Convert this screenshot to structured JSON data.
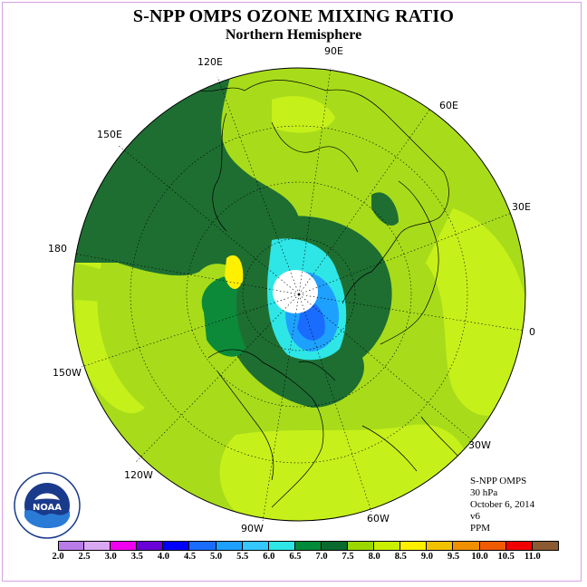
{
  "title": "S-NPP OMPS OZONE MIXING RATIO",
  "subtitle": "Northern Hemisphere",
  "longitude_labels": [
    "90E",
    "60E",
    "30E",
    "0",
    "30W",
    "60W",
    "90W",
    "120W",
    "150W",
    "180",
    "150E",
    "120E"
  ],
  "info": {
    "instrument": "S-NPP OMPS",
    "level": "30 hPa",
    "date": "October 6, 2014",
    "version": "v6",
    "units": "PPM"
  },
  "logo_text": "NOAA",
  "colorbar": {
    "labels": [
      "2.0",
      "2.5",
      "3.0",
      "3.5",
      "4.0",
      "4.5",
      "5.0",
      "5.5",
      "6.0",
      "6.5",
      "7.0",
      "7.5",
      "8.0",
      "8.5",
      "9.0",
      "9.5",
      "10.0",
      "10.5",
      "11.0"
    ],
    "colors": [
      "#b87ce8",
      "#d9a8f2",
      "#f000f0",
      "#6a00d8",
      "#0000ff",
      "#1a6cff",
      "#1ea0ff",
      "#34c8ff",
      "#2ee6e6",
      "#008a3a",
      "#0a6a2e",
      "#9ad800",
      "#c8f000",
      "#fff000",
      "#f2c200",
      "#f09000",
      "#f05a00",
      "#f00000",
      "#8c5a32"
    ]
  },
  "map_colors": {
    "ocean_base": "#a8dc1a",
    "light_green": "#c6f01a",
    "dark_green": "#1e6e32",
    "mid_green": "#0c8a3a",
    "cyan": "#2ee6e6",
    "light_blue": "#1ea0ff",
    "blue": "#1a6cff",
    "yellow": "#fff000",
    "polar_night": "#ffffff"
  }
}
